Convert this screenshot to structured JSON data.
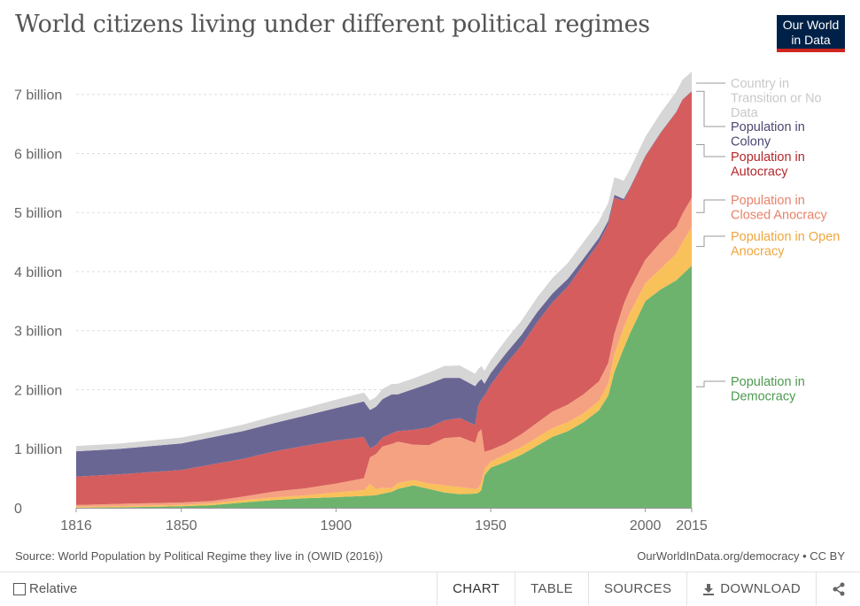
{
  "title": "World citizens living under different political regimes",
  "logo": {
    "line1": "Our World",
    "line2": "in Data",
    "bg_color": "#002147",
    "accent_color": "#ce261e"
  },
  "source": "Source: World Population by Political Regime they live in (OWID (2016))",
  "link": "OurWorldInData.org/democracy • CC BY",
  "footer": {
    "relative_label": "Relative",
    "tabs": [
      {
        "label": "CHART",
        "active": true
      },
      {
        "label": "TABLE",
        "active": false
      },
      {
        "label": "SOURCES",
        "active": false
      },
      {
        "label": "DOWNLOAD",
        "active": false
      }
    ],
    "share_icon": "share-icon"
  },
  "chart_data": {
    "type": "area",
    "stacked": true,
    "title": "World citizens living under different political regimes",
    "xlabel": "",
    "ylabel": "",
    "x_range": [
      1816,
      2015
    ],
    "ylim": [
      0,
      7400000000
    ],
    "x_ticks": [
      1816,
      1850,
      1900,
      1950,
      2000,
      2015
    ],
    "x_tick_labels": [
      "1816",
      "1850",
      "1900",
      "1950",
      "2000",
      "2015"
    ],
    "y_ticks": [
      0,
      1000000000,
      2000000000,
      3000000000,
      4000000000,
      5000000000,
      6000000000,
      7000000000
    ],
    "y_tick_labels": [
      "0",
      "1 billion",
      "2 billion",
      "3 billion",
      "4 billion",
      "5 billion",
      "6 billion",
      "7 billion"
    ],
    "grid": true,
    "legend_position": "right",
    "x": [
      1816,
      1830,
      1850,
      1860,
      1870,
      1880,
      1890,
      1900,
      1909,
      1911,
      1913,
      1915,
      1918,
      1920,
      1925,
      1930,
      1935,
      1940,
      1945,
      1946,
      1947,
      1948,
      1950,
      1955,
      1960,
      1965,
      1970,
      1975,
      1980,
      1985,
      1988,
      1990,
      1993,
      1995,
      2000,
      2005,
      2010,
      2012,
      2015
    ],
    "series": [
      {
        "name": "Population in Democracy",
        "color": "#6db36e",
        "values": [
          2,
          8,
          25,
          45,
          90,
          130,
          160,
          180,
          200,
          205,
          215,
          240,
          270,
          320,
          380,
          320,
          260,
          230,
          240,
          250,
          300,
          550,
          680,
          780,
          900,
          1050,
          1200,
          1300,
          1450,
          1650,
          1900,
          2300,
          2700,
          2950,
          3500,
          3700,
          3850,
          3950,
          4100
        ]
      },
      {
        "name": "Population in Open Anocracy",
        "color": "#f9c15a",
        "values": [
          15,
          20,
          25,
          30,
          40,
          45,
          50,
          80,
          100,
          200,
          100,
          100,
          60,
          100,
          90,
          90,
          120,
          120,
          80,
          80,
          130,
          100,
          100,
          130,
          130,
          140,
          150,
          150,
          150,
          160,
          200,
          300,
          350,
          350,
          300,
          350,
          450,
          550,
          650
        ]
      },
      {
        "name": "Population in Closed Anocracy",
        "color": "#f5a282",
        "values": [
          30,
          40,
          40,
          40,
          60,
          100,
          120,
          150,
          200,
          450,
          600,
          700,
          750,
          700,
          600,
          650,
          800,
          850,
          780,
          950,
          900,
          300,
          200,
          180,
          220,
          250,
          280,
          300,
          320,
          330,
          350,
          350,
          400,
          400,
          400,
          450,
          450,
          480,
          500
        ]
      },
      {
        "name": "Population in Autocracy",
        "color": "#d55d5d",
        "values": [
          480,
          500,
          550,
          620,
          640,
          680,
          720,
          730,
          700,
          150,
          150,
          150,
          180,
          180,
          250,
          300,
          300,
          320,
          300,
          450,
          500,
          950,
          1100,
          1350,
          1500,
          1700,
          1850,
          2000,
          2200,
          2350,
          2350,
          2300,
          1750,
          1700,
          1750,
          1850,
          1950,
          1930,
          1800
        ]
      },
      {
        "name": "Population in Colony",
        "color": "#6a6694",
        "values": [
          430,
          430,
          450,
          460,
          470,
          480,
          510,
          550,
          600,
          650,
          650,
          650,
          660,
          620,
          690,
          740,
          720,
          680,
          660,
          400,
          350,
          200,
          200,
          180,
          180,
          170,
          150,
          130,
          100,
          80,
          60,
          50,
          30,
          20,
          10,
          10,
          5,
          5,
          5
        ]
      },
      {
        "name": "Country in Transition or No Data",
        "color": "#d6d6d6",
        "values": [
          90,
          90,
          100,
          100,
          110,
          120,
          130,
          140,
          150,
          160,
          165,
          170,
          175,
          180,
          180,
          190,
          200,
          210,
          210,
          220,
          220,
          220,
          220,
          230,
          240,
          250,
          260,
          270,
          280,
          280,
          300,
          300,
          310,
          310,
          320,
          330,
          340,
          330,
          330
        ]
      }
    ],
    "value_unit": "millions",
    "legend": [
      {
        "lines": [
          "Country in",
          "Transition or No",
          "Data"
        ],
        "color": "#c8c8c8"
      },
      {
        "lines": [
          "Population in",
          "Colony"
        ],
        "color": "#4a4773"
      },
      {
        "lines": [
          "Population in",
          "Autocracy"
        ],
        "color": "#b5262b"
      },
      {
        "lines": [
          "Population in",
          "Closed Anocracy"
        ],
        "color": "#e8826a"
      },
      {
        "lines": [
          "Population in Open",
          "Anocracy"
        ],
        "color": "#f0a63c"
      },
      {
        "lines": [
          "Population in",
          "Democracy"
        ],
        "color": "#4d9a50"
      }
    ]
  }
}
